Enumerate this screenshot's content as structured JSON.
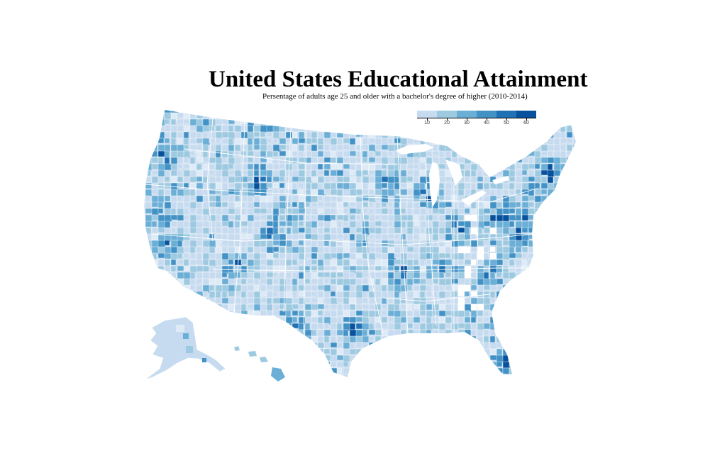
{
  "title": "United States Educational Attainment",
  "subtitle": "Persentage of adults age 25 and older with a bachelor's degree of higher (2010-2014)",
  "legend": {
    "thresholds": [
      10,
      20,
      30,
      40,
      50,
      60
    ],
    "labels": [
      "10",
      "20",
      "30",
      "40",
      "50",
      "60"
    ],
    "colors": [
      "#c6dbef",
      "#9ecae1",
      "#6baed6",
      "#4292c6",
      "#2171b5",
      "#08519c"
    ]
  },
  "map": {
    "base_color": "#c6dbef",
    "low_color": "#deebf7",
    "border_color": "#ffffff"
  }
}
